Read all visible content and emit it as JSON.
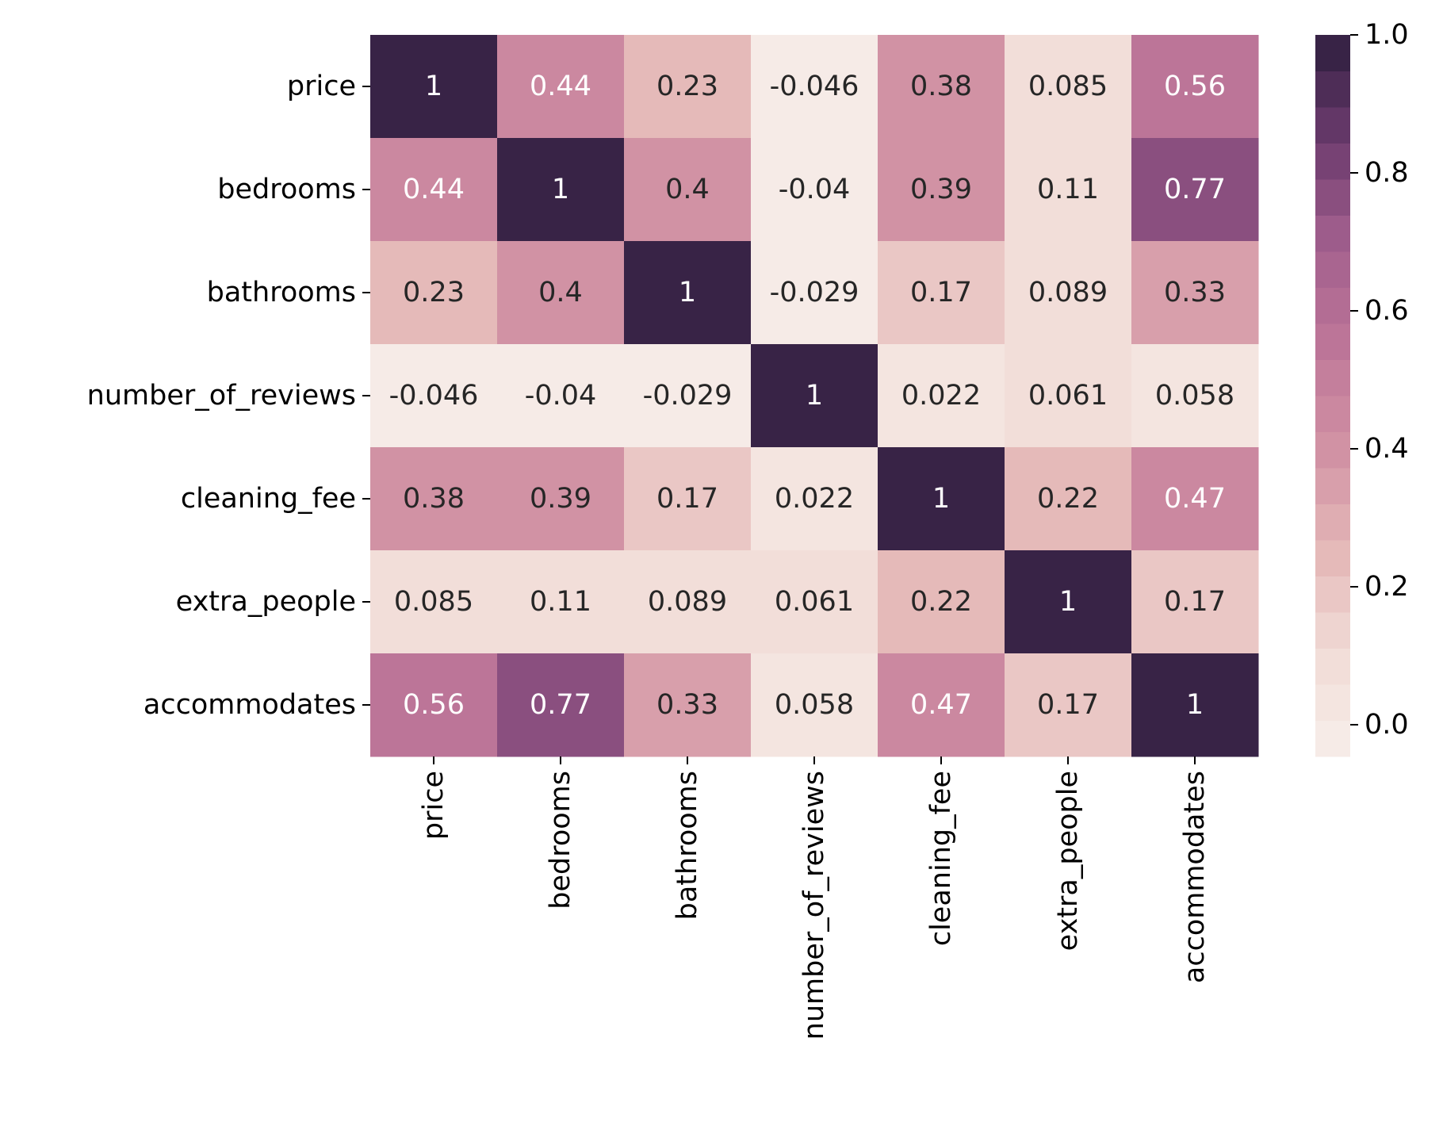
{
  "chart_data": {
    "type": "heatmap",
    "title": "",
    "xlabel": "",
    "ylabel": "",
    "rows": [
      "price",
      "bedrooms",
      "bathrooms",
      "number_of_reviews",
      "cleaning_fee",
      "extra_people",
      "accommodates"
    ],
    "columns": [
      "price",
      "bedrooms",
      "bathrooms",
      "number_of_reviews",
      "cleaning_fee",
      "extra_people",
      "accommodates"
    ],
    "values": [
      [
        1,
        0.44,
        0.23,
        -0.046,
        0.38,
        0.085,
        0.56
      ],
      [
        0.44,
        1,
        0.4,
        -0.04,
        0.39,
        0.11,
        0.77
      ],
      [
        0.23,
        0.4,
        1,
        -0.029,
        0.17,
        0.089,
        0.33
      ],
      [
        -0.046,
        -0.04,
        -0.029,
        1,
        0.022,
        0.061,
        0.058
      ],
      [
        0.38,
        0.39,
        0.17,
        0.022,
        1,
        0.22,
        0.47
      ],
      [
        0.085,
        0.11,
        0.089,
        0.061,
        0.22,
        1,
        0.17
      ],
      [
        0.56,
        0.77,
        0.33,
        0.058,
        0.47,
        0.17,
        1
      ]
    ],
    "annotations": [
      [
        "1",
        "0.44",
        "0.23",
        "-0.046",
        "0.38",
        "0.085",
        "0.56"
      ],
      [
        "0.44",
        "1",
        "0.4",
        "-0.04",
        "0.39",
        "0.11",
        "0.77"
      ],
      [
        "0.23",
        "0.4",
        "1",
        "-0.029",
        "0.17",
        "0.089",
        "0.33"
      ],
      [
        "-0.046",
        "-0.04",
        "-0.029",
        "1",
        "0.022",
        "0.061",
        "0.058"
      ],
      [
        "0.38",
        "0.39",
        "0.17",
        "0.022",
        "1",
        "0.22",
        "0.47"
      ],
      [
        "0.085",
        "0.11",
        "0.089",
        "0.061",
        "0.22",
        "1",
        "0.17"
      ],
      [
        "0.56",
        "0.77",
        "0.33",
        "0.058",
        "0.47",
        "0.17",
        "1"
      ]
    ],
    "vmin": -0.046,
    "vmax": 1,
    "colorbar": {
      "ticks": [
        0.0,
        0.2,
        0.4,
        0.6,
        0.8,
        1.0
      ],
      "tick_labels": [
        "0.0",
        "0.2",
        "0.4",
        "0.6",
        "0.8",
        "1.0"
      ],
      "n_levels": 20
    },
    "colormap": [
      "#f7eeea",
      "#f1dcd7",
      "#e4b7b7",
      "#d191a4",
      "#bd7698",
      "#a15f8d",
      "#6b3a6d",
      "#2d1e3e"
    ],
    "annotation_colors": {
      "dark": "#262626",
      "light": "#ffffff"
    },
    "grid": false
  }
}
